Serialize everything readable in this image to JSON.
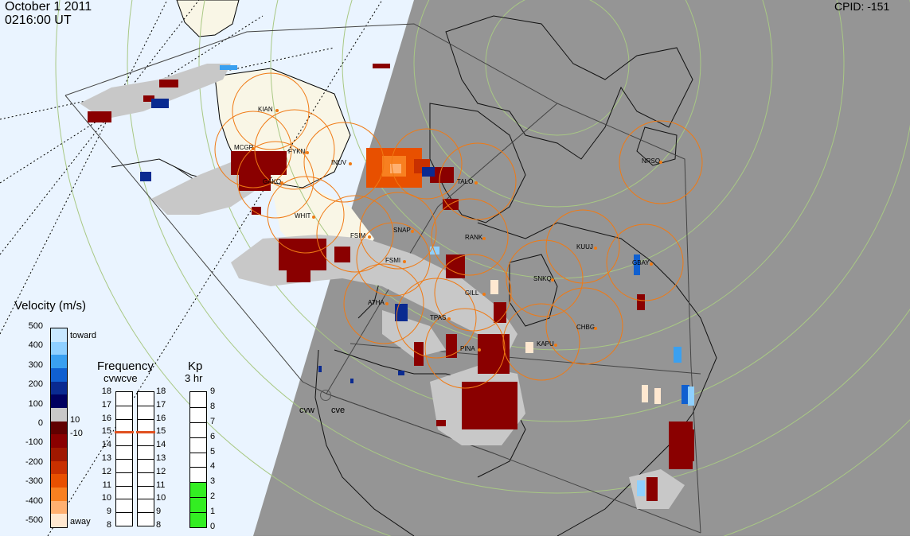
{
  "header": {
    "date": "October  1 2011",
    "time": "0216:00 UT",
    "cpid": "CPID:  -151"
  },
  "velocity_scale": {
    "title": "Velocity (m/s)",
    "ticks": [
      "500",
      "400",
      "300",
      "200",
      "100",
      "0",
      "-100",
      "-200",
      "-300",
      "-400",
      "-500"
    ],
    "toward_label": "toward",
    "away_label": "away",
    "threshold_pos": "10",
    "threshold_neg": "-10",
    "colors": {
      "toward": [
        "#c8e8ff",
        "#8fd0ff",
        "#3aa0f0",
        "#1060d0",
        "#0a2a90",
        "#000060"
      ],
      "away": [
        "#600000",
        "#8a0000",
        "#a01800",
        "#c83000",
        "#e85000",
        "#f88020",
        "#ffb070",
        "#ffe8d0"
      ],
      "ground_scatter": "#c8c8c8"
    }
  },
  "frequency_scale": {
    "title": "Frequency",
    "subtitle": "cvwcve",
    "ticks": [
      "18",
      "17",
      "16",
      "15",
      "14",
      "13",
      "12",
      "11",
      "10",
      "9",
      "8"
    ],
    "cvw_value_mhz": 15,
    "cve_value_mhz": 15,
    "marker_color": "#e05020"
  },
  "kp_scale": {
    "title": "Kp",
    "subtitle": "3 hr",
    "ticks": [
      "9",
      "8",
      "7",
      "6",
      "5",
      "4",
      "3",
      "2",
      "1",
      "0"
    ],
    "kp_value": 3,
    "fill_color": "#33ee22"
  },
  "map": {
    "radar_labels": [
      "cvw",
      "cve"
    ],
    "stations": [
      {
        "name": "KIAN"
      },
      {
        "name": "MCGR"
      },
      {
        "name": "FYKN"
      },
      {
        "name": "GAKO"
      },
      {
        "name": "INUV"
      },
      {
        "name": "WHIT"
      },
      {
        "name": "FSIM"
      },
      {
        "name": "SNAP"
      },
      {
        "name": "FSMI"
      },
      {
        "name": "RANK"
      },
      {
        "name": "ATHA"
      },
      {
        "name": "TPAS"
      },
      {
        "name": "GILL"
      },
      {
        "name": "PINA"
      },
      {
        "name": "SNKQ"
      },
      {
        "name": "KUUJ"
      },
      {
        "name": "GBAY"
      },
      {
        "name": "CHBG"
      },
      {
        "name": "KAPU"
      },
      {
        "name": "NRSQ"
      },
      {
        "name": "TALO"
      }
    ],
    "colors": {
      "day": "#eaf4ff",
      "night": "#959595",
      "land_day": "#f9f6e6",
      "fov_ring": "#f07a14",
      "graticule": "#a8c884"
    }
  }
}
